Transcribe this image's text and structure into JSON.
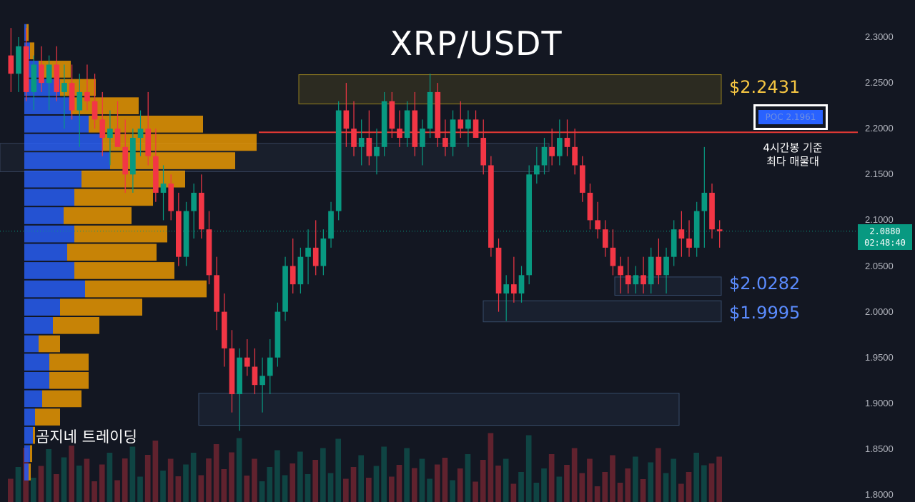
{
  "title": "XRP/USDT",
  "watermark": "곰지네 트레이딩",
  "poc_label": "POC 2.1961",
  "poc_note": "4시간봉 기준\n최다 매물대",
  "current_price": {
    "price": "2.0880",
    "countdown": "02:48:40"
  },
  "annotations": [
    {
      "label": "$2.2431",
      "color": "#f5c542"
    },
    {
      "label": "$2.0282",
      "color": "#5b8cff"
    },
    {
      "label": "$1.9995",
      "color": "#5b8cff"
    }
  ],
  "colors": {
    "up": "#089981",
    "down": "#f23645",
    "poc_line": "#e53935",
    "vp_blue": "#2962ff",
    "vp_orange": "#f59f00",
    "background": "#131722"
  },
  "chart_data": {
    "type": "candlestick",
    "title": "XRP/USDT",
    "timeframe_note": "4시간봉",
    "ylim": [
      1.8,
      2.3
    ],
    "y_ticks": [
      "2.3000",
      "2.2500",
      "2.2000",
      "2.1500",
      "2.1000",
      "2.0500",
      "2.0000",
      "1.9500",
      "1.9000",
      "1.8500",
      "1.8000"
    ],
    "grid": false,
    "poc": 2.1961,
    "last_price": 2.088,
    "zones": [
      {
        "name": "supply",
        "low": 2.227,
        "high": 2.259,
        "color": "#a0891f"
      },
      {
        "name": "range-a",
        "low": 2.153,
        "high": 2.184,
        "color": "#3a4660"
      },
      {
        "name": "support-1",
        "low": 2.018,
        "high": 2.038,
        "color": "#3a5070"
      },
      {
        "name": "support-2",
        "low": 1.989,
        "high": 2.012,
        "color": "#3a5070"
      },
      {
        "name": "demand",
        "low": 1.876,
        "high": 1.911,
        "color": "#3a5070"
      }
    ],
    "volume_profile": [
      {
        "price": 2.305,
        "buy": 0.003,
        "sell": 0.003
      },
      {
        "price": 2.285,
        "buy": 0.008,
        "sell": 0.006
      },
      {
        "price": 2.265,
        "buy": 0.02,
        "sell": 0.045
      },
      {
        "price": 2.245,
        "buy": 0.05,
        "sell": 0.05
      },
      {
        "price": 2.225,
        "buy": 0.065,
        "sell": 0.095
      },
      {
        "price": 2.205,
        "buy": 0.09,
        "sell": 0.16
      },
      {
        "price": 2.185,
        "buy": 0.11,
        "sell": 0.215
      },
      {
        "price": 2.165,
        "buy": 0.12,
        "sell": 0.175
      },
      {
        "price": 2.145,
        "buy": 0.08,
        "sell": 0.145
      },
      {
        "price": 2.125,
        "buy": 0.07,
        "sell": 0.11
      },
      {
        "price": 2.105,
        "buy": 0.055,
        "sell": 0.095
      },
      {
        "price": 2.085,
        "buy": 0.07,
        "sell": 0.13
      },
      {
        "price": 2.065,
        "buy": 0.06,
        "sell": 0.125
      },
      {
        "price": 2.045,
        "buy": 0.07,
        "sell": 0.14
      },
      {
        "price": 2.025,
        "buy": 0.085,
        "sell": 0.17
      },
      {
        "price": 2.005,
        "buy": 0.05,
        "sell": 0.115
      },
      {
        "price": 1.985,
        "buy": 0.04,
        "sell": 0.065
      },
      {
        "price": 1.965,
        "buy": 0.02,
        "sell": 0.03
      },
      {
        "price": 1.945,
        "buy": 0.035,
        "sell": 0.055
      },
      {
        "price": 1.925,
        "buy": 0.035,
        "sell": 0.055
      },
      {
        "price": 1.905,
        "buy": 0.025,
        "sell": 0.055
      },
      {
        "price": 1.885,
        "buy": 0.015,
        "sell": 0.035
      },
      {
        "price": 1.865,
        "buy": 0.012,
        "sell": 0.003
      },
      {
        "price": 1.845,
        "buy": 0.008,
        "sell": 0.003
      },
      {
        "price": 1.825,
        "buy": 0.006,
        "sell": 0.003
      }
    ],
    "candles": [
      [
        2.28,
        2.31,
        2.24,
        2.26
      ],
      [
        2.26,
        2.3,
        2.24,
        2.29
      ],
      [
        2.29,
        2.31,
        2.23,
        2.24
      ],
      [
        2.24,
        2.28,
        2.22,
        2.27
      ],
      [
        2.27,
        2.29,
        2.24,
        2.25
      ],
      [
        2.25,
        2.28,
        2.22,
        2.27
      ],
      [
        2.27,
        2.29,
        2.23,
        2.24
      ],
      [
        2.24,
        2.27,
        2.2,
        2.25
      ],
      [
        2.25,
        2.27,
        2.21,
        2.22
      ],
      [
        2.22,
        2.26,
        2.18,
        2.24
      ],
      [
        2.24,
        2.27,
        2.22,
        2.23
      ],
      [
        2.23,
        2.26,
        2.2,
        2.21
      ],
      [
        2.21,
        2.24,
        2.17,
        2.19
      ],
      [
        2.19,
        2.22,
        2.16,
        2.2
      ],
      [
        2.2,
        2.23,
        2.18,
        2.18
      ],
      [
        2.18,
        2.21,
        2.13,
        2.15
      ],
      [
        2.15,
        2.2,
        2.13,
        2.19
      ],
      [
        2.19,
        2.22,
        2.17,
        2.2
      ],
      [
        2.2,
        2.24,
        2.16,
        2.17
      ],
      [
        2.17,
        2.2,
        2.12,
        2.13
      ],
      [
        2.13,
        2.16,
        2.1,
        2.14
      ],
      [
        2.14,
        2.15,
        2.1,
        2.11
      ],
      [
        2.11,
        2.13,
        2.05,
        2.06
      ],
      [
        2.06,
        2.12,
        2.05,
        2.11
      ],
      [
        2.11,
        2.14,
        2.08,
        2.13
      ],
      [
        2.13,
        2.15,
        2.08,
        2.09
      ],
      [
        2.09,
        2.11,
        2.03,
        2.04
      ],
      [
        2.04,
        2.06,
        1.98,
        2.0
      ],
      [
        2.0,
        2.02,
        1.94,
        1.96
      ],
      [
        1.96,
        1.98,
        1.89,
        1.91
      ],
      [
        1.91,
        1.96,
        1.87,
        1.95
      ],
      [
        1.95,
        1.97,
        1.93,
        1.94
      ],
      [
        1.94,
        1.96,
        1.91,
        1.92
      ],
      [
        1.92,
        1.95,
        1.89,
        1.93
      ],
      [
        1.93,
        1.97,
        1.91,
        1.95
      ],
      [
        1.95,
        2.01,
        1.94,
        2.0
      ],
      [
        2.0,
        2.06,
        1.99,
        2.05
      ],
      [
        2.05,
        2.08,
        2.02,
        2.03
      ],
      [
        2.03,
        2.07,
        2.02,
        2.06
      ],
      [
        2.06,
        2.09,
        2.03,
        2.07
      ],
      [
        2.07,
        2.1,
        2.04,
        2.05
      ],
      [
        2.05,
        2.09,
        2.04,
        2.08
      ],
      [
        2.08,
        2.12,
        2.07,
        2.11
      ],
      [
        2.11,
        2.23,
        2.1,
        2.22
      ],
      [
        2.22,
        2.25,
        2.18,
        2.2
      ],
      [
        2.2,
        2.23,
        2.17,
        2.18
      ],
      [
        2.18,
        2.21,
        2.16,
        2.19
      ],
      [
        2.19,
        2.22,
        2.16,
        2.17
      ],
      [
        2.17,
        2.2,
        2.15,
        2.18
      ],
      [
        2.18,
        2.24,
        2.17,
        2.23
      ],
      [
        2.23,
        2.24,
        2.19,
        2.2
      ],
      [
        2.2,
        2.22,
        2.18,
        2.19
      ],
      [
        2.19,
        2.23,
        2.18,
        2.22
      ],
      [
        2.22,
        2.24,
        2.17,
        2.18
      ],
      [
        2.18,
        2.21,
        2.16,
        2.2
      ],
      [
        2.2,
        2.26,
        2.19,
        2.24
      ],
      [
        2.24,
        2.25,
        2.18,
        2.19
      ],
      [
        2.19,
        2.21,
        2.17,
        2.18
      ],
      [
        2.18,
        2.22,
        2.17,
        2.21
      ],
      [
        2.21,
        2.23,
        2.19,
        2.2
      ],
      [
        2.2,
        2.22,
        2.18,
        2.21
      ],
      [
        2.21,
        2.22,
        2.19,
        2.19
      ],
      [
        2.19,
        2.21,
        2.15,
        2.16
      ],
      [
        2.16,
        2.17,
        2.06,
        2.07
      ],
      [
        2.07,
        2.08,
        2.0,
        2.02
      ],
      [
        2.02,
        2.04,
        1.99,
        2.03
      ],
      [
        2.03,
        2.06,
        2.01,
        2.02
      ],
      [
        2.02,
        2.05,
        2.01,
        2.04
      ],
      [
        2.04,
        2.16,
        2.03,
        2.15
      ],
      [
        2.15,
        2.18,
        2.14,
        2.16
      ],
      [
        2.16,
        2.19,
        2.15,
        2.18
      ],
      [
        2.18,
        2.2,
        2.16,
        2.17
      ],
      [
        2.17,
        2.21,
        2.16,
        2.19
      ],
      [
        2.19,
        2.21,
        2.17,
        2.18
      ],
      [
        2.18,
        2.2,
        2.15,
        2.16
      ],
      [
        2.16,
        2.17,
        2.12,
        2.13
      ],
      [
        2.13,
        2.14,
        2.09,
        2.1
      ],
      [
        2.1,
        2.12,
        2.08,
        2.09
      ],
      [
        2.09,
        2.1,
        2.06,
        2.07
      ],
      [
        2.07,
        2.09,
        2.04,
        2.05
      ],
      [
        2.05,
        2.06,
        2.02,
        2.04
      ],
      [
        2.04,
        2.06,
        2.02,
        2.03
      ],
      [
        2.03,
        2.05,
        2.02,
        2.04
      ],
      [
        2.04,
        2.06,
        2.02,
        2.03
      ],
      [
        2.03,
        2.07,
        2.02,
        2.06
      ],
      [
        2.06,
        2.08,
        2.03,
        2.04
      ],
      [
        2.04,
        2.07,
        2.02,
        2.06
      ],
      [
        2.06,
        2.1,
        2.05,
        2.09
      ],
      [
        2.09,
        2.11,
        2.06,
        2.08
      ],
      [
        2.08,
        2.1,
        2.06,
        2.07
      ],
      [
        2.07,
        2.12,
        2.06,
        2.11
      ],
      [
        2.11,
        2.18,
        2.07,
        2.13
      ],
      [
        2.13,
        2.14,
        2.08,
        2.09
      ],
      [
        2.09,
        2.1,
        2.07,
        2.088
      ]
    ]
  }
}
